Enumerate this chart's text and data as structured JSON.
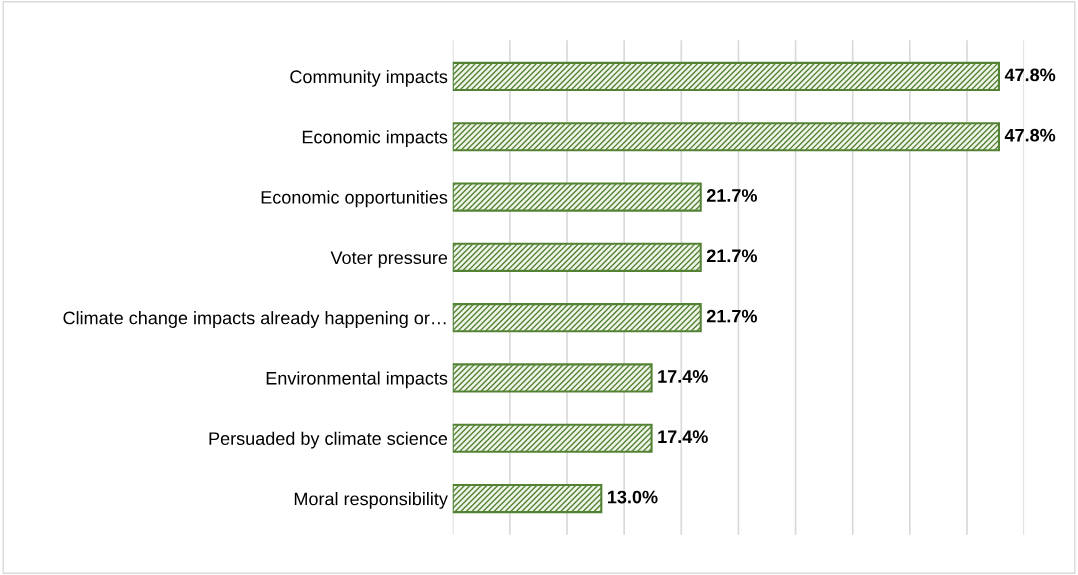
{
  "chart_data": {
    "type": "bar",
    "orientation": "horizontal",
    "categories": [
      "Community impacts",
      "Economic impacts",
      "Economic opportunities",
      "Voter pressure",
      "Climate change impacts already happening or…",
      "Environmental impacts",
      "Persuaded by climate science",
      "Moral responsibility"
    ],
    "values": [
      47.8,
      47.8,
      21.7,
      21.7,
      21.7,
      17.4,
      17.4,
      13.0
    ],
    "value_labels": [
      "47.8%",
      "47.8%",
      "21.7%",
      "21.7%",
      "21.7%",
      "17.4%",
      "17.4%",
      "13.0%"
    ],
    "color": "#548235",
    "xlim": [
      0,
      50
    ],
    "xticks": [
      {
        "value": 0,
        "label": null
      },
      {
        "value": 5,
        "label": null
      },
      {
        "value": 10,
        "label": null
      },
      {
        "value": 15,
        "label": null
      },
      {
        "value": 20,
        "label": null
      },
      {
        "value": 25,
        "label": null
      },
      {
        "value": 30,
        "label": null
      },
      {
        "value": 35,
        "label": null
      },
      {
        "value": 40,
        "label": null
      },
      {
        "value": 45,
        "label": null
      },
      {
        "value": 50,
        "label": null
      }
    ],
    "grid": "x"
  }
}
